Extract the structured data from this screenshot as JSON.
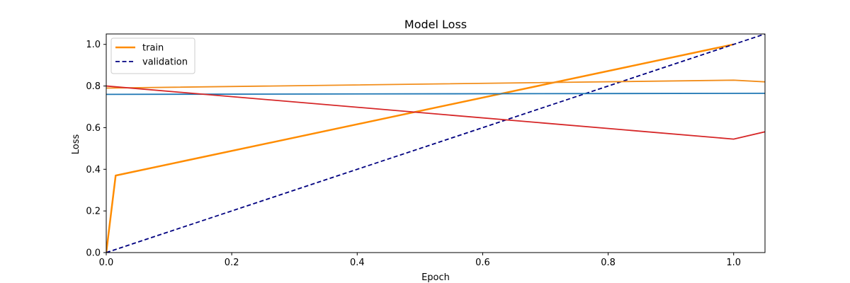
{
  "chart_data": {
    "type": "line",
    "title": "Model Loss",
    "xlabel": "Epoch",
    "ylabel": "Loss",
    "xlim": [
      0.0,
      1.05
    ],
    "ylim": [
      0.0,
      1.05
    ],
    "xticks": [
      "0.0",
      "0.2",
      "0.4",
      "0.6",
      "0.8",
      "1.0"
    ],
    "yticks": [
      "0.0",
      "0.2",
      "0.4",
      "0.6",
      "0.8",
      "1.0"
    ],
    "grid": false,
    "legend_position": "top-left",
    "series": [
      {
        "name": "train",
        "color": "#ff8c00",
        "style": "solid",
        "width": 2.5,
        "in_legend": true,
        "x": [
          0.0,
          0.015,
          1.0
        ],
        "y": [
          0.0,
          0.37,
          1.0
        ]
      },
      {
        "name": "validation",
        "color": "#000080",
        "style": "dashed",
        "width": 1.8,
        "in_legend": true,
        "x": [
          0.0,
          1.05
        ],
        "y": [
          0.0,
          1.05
        ]
      },
      {
        "color": "#f28e1c",
        "style": "solid",
        "width": 1.8,
        "in_legend": false,
        "x": [
          0.0,
          1.0,
          1.05
        ],
        "y": [
          0.79,
          0.828,
          0.82
        ]
      },
      {
        "color": "#1f77b4",
        "style": "solid",
        "width": 1.8,
        "in_legend": false,
        "x": [
          0.0,
          1.05
        ],
        "y": [
          0.76,
          0.765
        ]
      },
      {
        "color": "#d62728",
        "style": "solid",
        "width": 1.8,
        "in_legend": false,
        "x": [
          0.0,
          1.0,
          1.05
        ],
        "y": [
          0.8,
          0.545,
          0.58
        ]
      }
    ]
  }
}
